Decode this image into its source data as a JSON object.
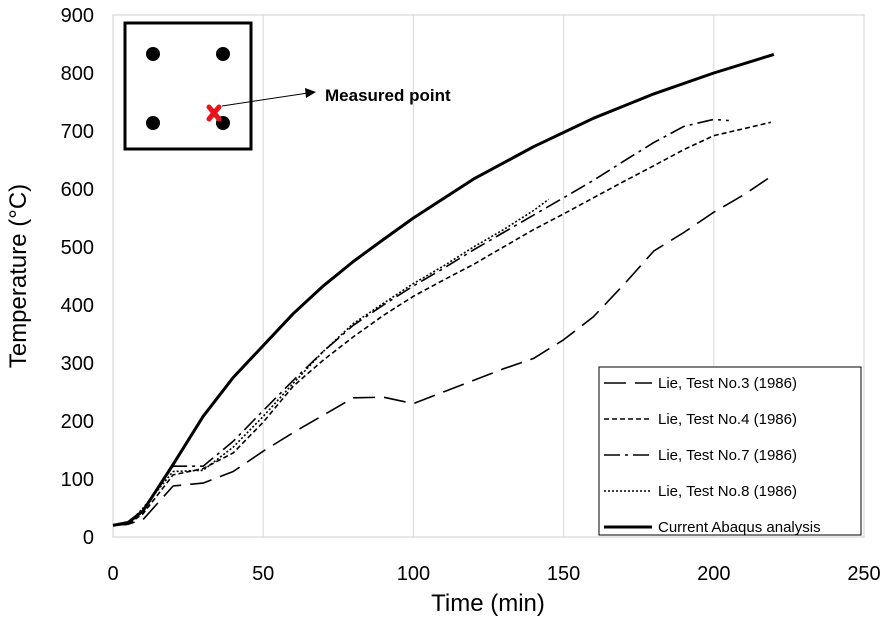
{
  "chart_data": {
    "type": "line",
    "xlabel": "Time (min)",
    "ylabel": "Temperature (°C)",
    "xlim": [
      0,
      250
    ],
    "ylim": [
      0,
      900
    ],
    "xticks": [
      0,
      50,
      100,
      150,
      200,
      250
    ],
    "yticks": [
      0,
      100,
      200,
      300,
      400,
      500,
      600,
      700,
      800,
      900
    ],
    "grid": "vertical",
    "legend_position": "bottom-right",
    "series": [
      {
        "name": "Lie, Test No.3 (1986)",
        "style": "long-dash",
        "x": [
          0,
          5,
          10,
          20,
          30,
          40,
          50,
          60,
          70,
          80,
          90,
          100,
          110,
          120,
          130,
          140,
          150,
          160,
          170,
          180,
          190,
          200,
          210,
          218
        ],
        "y": [
          20,
          22,
          30,
          88,
          93,
          113,
          148,
          180,
          210,
          240,
          241,
          230,
          250,
          270,
          290,
          308,
          340,
          380,
          435,
          493,
          525,
          560,
          590,
          618
        ]
      },
      {
        "name": "Lie, Test No.4 (1986)",
        "style": "short-dash",
        "x": [
          0,
          5,
          10,
          20,
          30,
          40,
          50,
          60,
          70,
          80,
          90,
          100,
          110,
          120,
          130,
          140,
          150,
          160,
          170,
          180,
          190,
          200,
          210,
          219
        ],
        "y": [
          20,
          22,
          40,
          107,
          118,
          145,
          198,
          260,
          305,
          345,
          382,
          415,
          443,
          470,
          500,
          530,
          557,
          585,
          613,
          640,
          668,
          692,
          704,
          715
        ]
      },
      {
        "name": "Lie, Test No.7 (1986)",
        "style": "dash-dot",
        "x": [
          0,
          5,
          10,
          20,
          30,
          40,
          50,
          60,
          70,
          80,
          90,
          100,
          110,
          120,
          130,
          140,
          150,
          160,
          170,
          180,
          190,
          200,
          205
        ],
        "y": [
          20,
          22,
          45,
          122,
          122,
          165,
          218,
          270,
          320,
          365,
          400,
          433,
          463,
          495,
          525,
          555,
          585,
          615,
          648,
          680,
          708,
          720,
          718
        ]
      },
      {
        "name": "Lie, Test No.8 (1986)",
        "style": "dotted",
        "x": [
          0,
          5,
          10,
          20,
          30,
          40,
          50,
          60,
          70,
          80,
          90,
          100,
          110,
          120,
          130,
          140,
          145
        ],
        "y": [
          20,
          22,
          50,
          113,
          115,
          155,
          208,
          265,
          320,
          368,
          403,
          437,
          467,
          500,
          530,
          563,
          582
        ]
      },
      {
        "name": "Current Abaqus analysis",
        "style": "solid-thick",
        "x": [
          0,
          5,
          10,
          15,
          20,
          30,
          40,
          50,
          60,
          70,
          80,
          90,
          100,
          120,
          140,
          160,
          180,
          200,
          220
        ],
        "y": [
          20,
          25,
          45,
          85,
          125,
          208,
          275,
          330,
          385,
          433,
          475,
          513,
          550,
          617,
          673,
          722,
          764,
          800,
          832
        ]
      }
    ],
    "annotations": [
      {
        "text": "Measured point"
      }
    ]
  }
}
